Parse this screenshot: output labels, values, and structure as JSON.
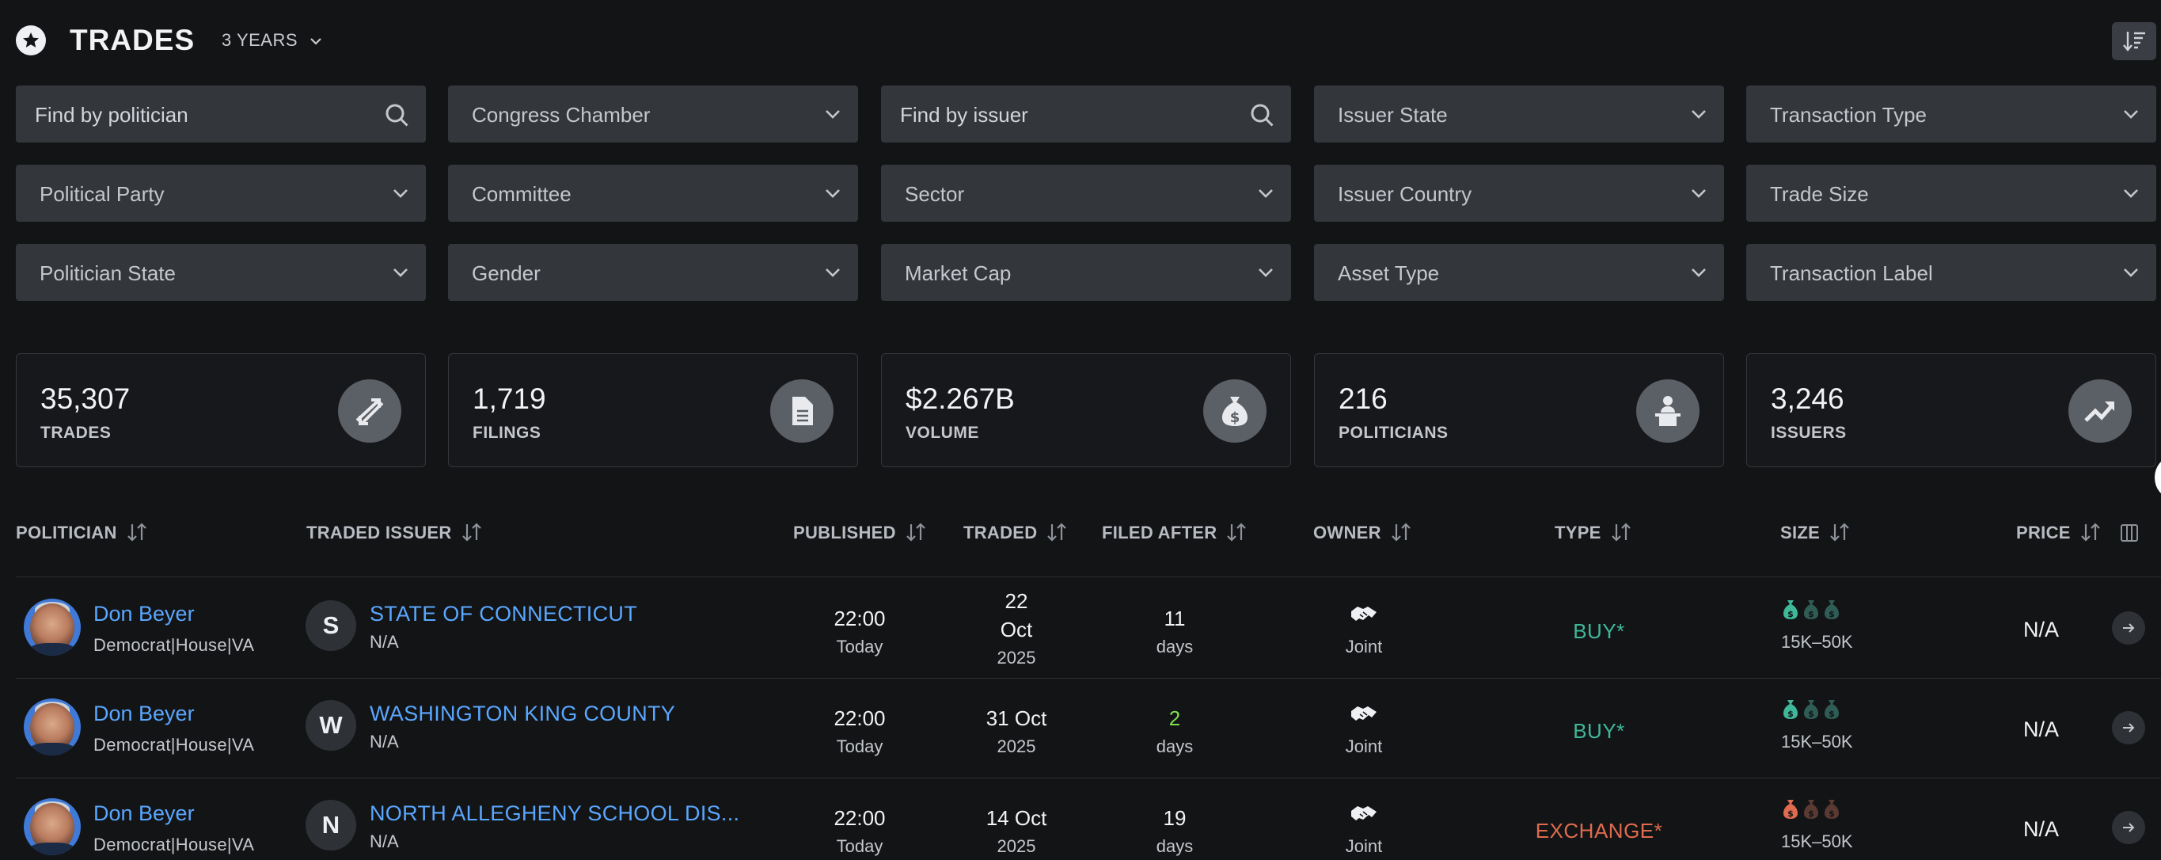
{
  "header": {
    "title": "TRADES",
    "period": "3 YEARS"
  },
  "filters": [
    {
      "label": "Find by politician",
      "kind": "search"
    },
    {
      "label": "Congress Chamber",
      "kind": "select"
    },
    {
      "label": "Find by issuer",
      "kind": "search"
    },
    {
      "label": "Issuer State",
      "kind": "select"
    },
    {
      "label": "Transaction Type",
      "kind": "select"
    },
    {
      "label": "Political Party",
      "kind": "select"
    },
    {
      "label": "Committee",
      "kind": "select"
    },
    {
      "label": "Sector",
      "kind": "select"
    },
    {
      "label": "Issuer Country",
      "kind": "select"
    },
    {
      "label": "Trade Size",
      "kind": "select"
    },
    {
      "label": "Politician State",
      "kind": "select"
    },
    {
      "label": "Gender",
      "kind": "select"
    },
    {
      "label": "Market Cap",
      "kind": "select"
    },
    {
      "label": "Asset Type",
      "kind": "select"
    },
    {
      "label": "Transaction Label",
      "kind": "select"
    }
  ],
  "stats": [
    {
      "value": "35,307",
      "label": "TRADES",
      "icon": "trades-arrows-icon"
    },
    {
      "value": "1,719",
      "label": "FILINGS",
      "icon": "document-icon"
    },
    {
      "value": "$2.267B",
      "label": "VOLUME",
      "icon": "money-bag-icon"
    },
    {
      "value": "216",
      "label": "POLITICIANS",
      "icon": "podium-speaker-icon"
    },
    {
      "value": "3,246",
      "label": "ISSUERS",
      "icon": "trend-up-icon"
    }
  ],
  "table": {
    "headers": {
      "politician": "POLITICIAN",
      "issuer": "TRADED ISSUER",
      "published": "PUBLISHED",
      "traded": "TRADED",
      "filed_after": "FILED AFTER",
      "owner": "OWNER",
      "type": "TYPE",
      "size": "SIZE",
      "price": "PRICE"
    },
    "rows": [
      {
        "politician": "Don Beyer",
        "meta": "Democrat|House|VA",
        "issuer_initial": "S",
        "issuer": "STATE OF CONNECTICUT",
        "issuer_sub": "N/A",
        "published_time": "22:00",
        "published_day": "Today",
        "traded_day": "22",
        "traded_month": "Oct",
        "traded_year": "2025",
        "filed_after": "11",
        "filed_unit": "days",
        "owner": "Joint",
        "type": "BUY*",
        "type_color": "#3fb89a",
        "size": "15K–50K",
        "size_level": 1,
        "price": "N/A"
      },
      {
        "politician": "Don Beyer",
        "meta": "Democrat|House|VA",
        "issuer_initial": "W",
        "issuer": "WASHINGTON KING COUNTY",
        "issuer_sub": "N/A",
        "published_time": "22:00",
        "published_day": "Today",
        "traded_date": "31 Oct",
        "traded_year": "2025",
        "filed_after": "2",
        "filed_color": "#7ee04f",
        "filed_unit": "days",
        "owner": "Joint",
        "type": "BUY*",
        "type_color": "#3fb89a",
        "size": "15K–50K",
        "size_level": 1,
        "price": "N/A"
      },
      {
        "politician": "Don Beyer",
        "meta": "Democrat|House|VA",
        "issuer_initial": "N",
        "issuer": "NORTH ALLEGHENY SCHOOL DIS...",
        "issuer_sub": "N/A",
        "published_time": "22:00",
        "published_day": "Today",
        "traded_date": "14 Oct",
        "traded_year": "2025",
        "filed_after": "19",
        "filed_unit": "days",
        "owner": "Joint",
        "type": "EXCHANGE*",
        "type_color": "#e06b4e",
        "size": "15K–50K",
        "size_level": 1,
        "price": "N/A"
      }
    ]
  }
}
